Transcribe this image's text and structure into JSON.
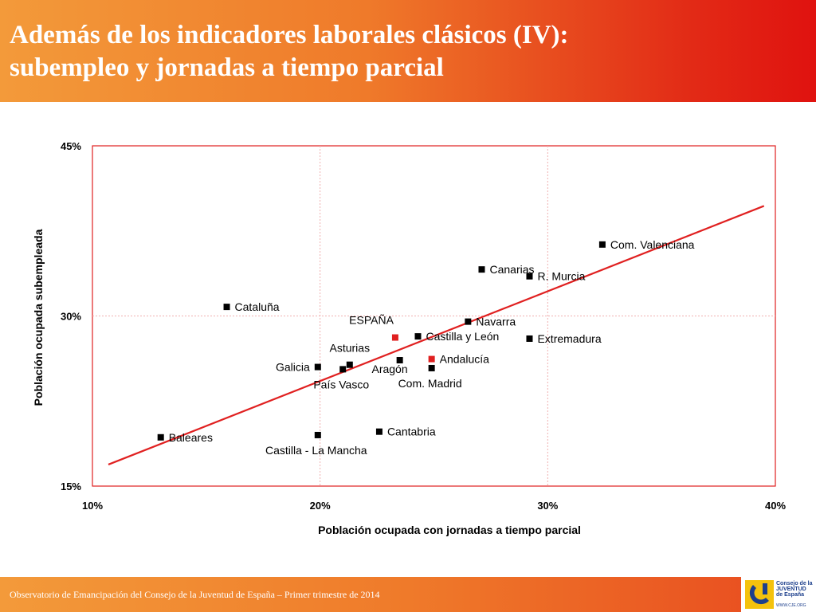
{
  "header": {
    "title_line1": "Además de los indicadores laborales clásicos (IV):",
    "title_line2": "subempleo y jornadas a tiempo parcial"
  },
  "footer": {
    "text": "Observatorio de Emancipación del Consejo de la Juventud de España – Primer trimestre de 2014",
    "logo_line1": "Consejo de la",
    "logo_line2": "JUVENTUD",
    "logo_line3": "de España",
    "logo_url": "WWW.CJE.ORG"
  },
  "chart_data": {
    "type": "scatter",
    "xlabel": "Población ocupada con jornadas a tiempo parcial",
    "ylabel": "Población ocupada subempleada",
    "xlim": [
      0.1,
      0.4
    ],
    "ylim": [
      0.15,
      0.45
    ],
    "x_ticks": [
      0.1,
      0.2,
      0.3,
      0.4
    ],
    "x_tick_labels": [
      "10%",
      "20%",
      "30%",
      "40%"
    ],
    "y_ticks": [
      0.15,
      0.3,
      0.45
    ],
    "y_tick_labels": [
      "15%",
      "30%",
      "45%"
    ],
    "grid": true,
    "trendline": {
      "x": [
        0.107,
        0.395
      ],
      "y": [
        0.169,
        0.397
      ],
      "color": "#e02020"
    },
    "colors": {
      "region": "#000000",
      "highlight": "#e02020",
      "frame": "#e02020",
      "grid": "#f0b0b0"
    },
    "points": [
      {
        "label": "Com. Valenciana",
        "x": 0.324,
        "y": 0.363,
        "highlight": false,
        "pos": "right"
      },
      {
        "label": "Canarias",
        "x": 0.271,
        "y": 0.341,
        "highlight": false,
        "pos": "right"
      },
      {
        "label": "R. Murcia",
        "x": 0.292,
        "y": 0.335,
        "highlight": false,
        "pos": "right"
      },
      {
        "label": "Cataluña",
        "x": 0.159,
        "y": 0.308,
        "highlight": false,
        "pos": "right"
      },
      {
        "label": "Navarra",
        "x": 0.265,
        "y": 0.295,
        "highlight": false,
        "pos": "right"
      },
      {
        "label": "ESPAÑA",
        "x": 0.233,
        "y": 0.281,
        "highlight": true,
        "pos": "above-left"
      },
      {
        "label": "Castilla y León",
        "x": 0.243,
        "y": 0.282,
        "highlight": false,
        "pos": "right"
      },
      {
        "label": "Extremadura",
        "x": 0.292,
        "y": 0.28,
        "highlight": false,
        "pos": "right"
      },
      {
        "label": "Andalucía",
        "x": 0.249,
        "y": 0.262,
        "highlight": true,
        "pos": "right"
      },
      {
        "label": "Asturias",
        "x": 0.213,
        "y": 0.257,
        "highlight": false,
        "pos": "above"
      },
      {
        "label": "Aragón",
        "x": 0.235,
        "y": 0.261,
        "highlight": false,
        "pos": "below-left"
      },
      {
        "label": "Com. Madrid",
        "x": 0.249,
        "y": 0.254,
        "highlight": false,
        "pos": "below"
      },
      {
        "label": "Galicia",
        "x": 0.199,
        "y": 0.255,
        "highlight": false,
        "pos": "left"
      },
      {
        "label": "País Vasco",
        "x": 0.21,
        "y": 0.253,
        "highlight": false,
        "pos": "below"
      },
      {
        "label": "Cantabria",
        "x": 0.226,
        "y": 0.198,
        "highlight": false,
        "pos": "right"
      },
      {
        "label": "Baleares",
        "x": 0.13,
        "y": 0.193,
        "highlight": false,
        "pos": "right"
      },
      {
        "label": "Castilla - La Mancha",
        "x": 0.199,
        "y": 0.195,
        "highlight": false,
        "pos": "below"
      }
    ]
  }
}
